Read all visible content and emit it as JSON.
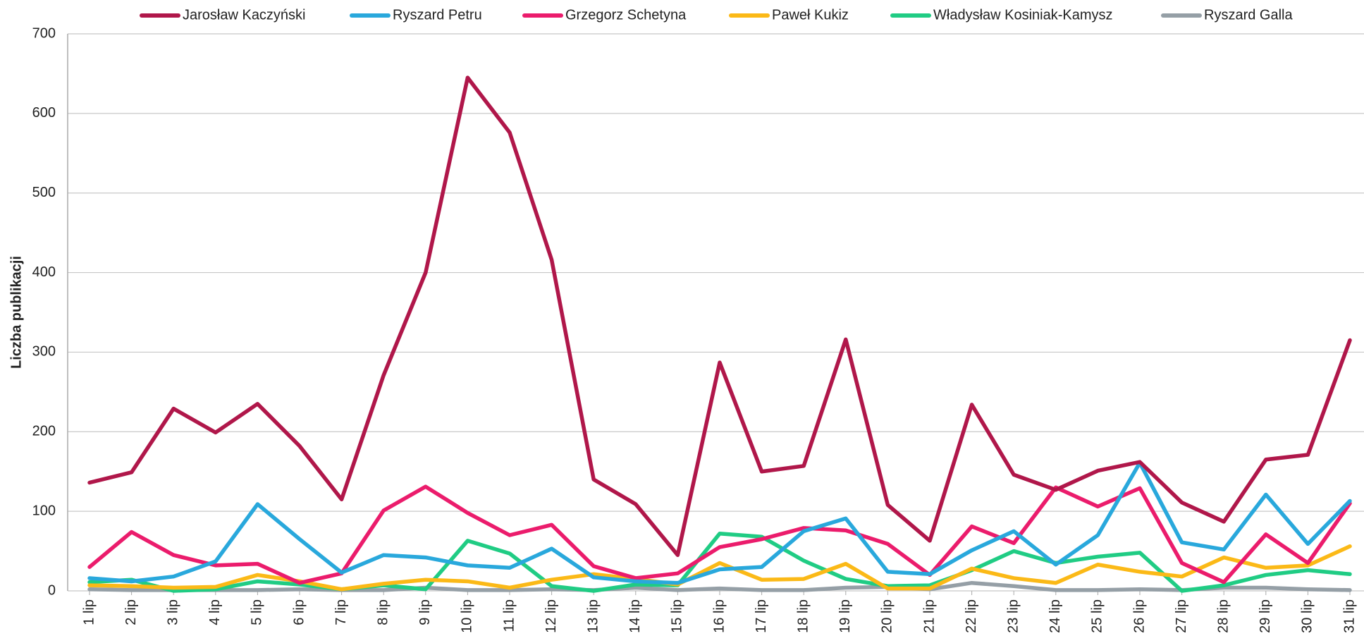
{
  "chart_data": {
    "type": "line",
    "y_label": "Liczba publikacji",
    "categories": [
      "1 lip",
      "2 lip",
      "3 lip",
      "4 lip",
      "5 lip",
      "6 lip",
      "7 lip",
      "8 lip",
      "9 lip",
      "10 lip",
      "11 lip",
      "12 lip",
      "13 lip",
      "14 lip",
      "15 lip",
      "16 lip",
      "17 lip",
      "18 lip",
      "19 lip",
      "20 lip",
      "21 lip",
      "22 lip",
      "23 lip",
      "24 lip",
      "25 lip",
      "26 lip",
      "27 lip",
      "28 lip",
      "29 lip",
      "30 lip",
      "31 lip"
    ],
    "series": [
      {
        "name": "Jarosław Kaczyński",
        "color": "#b0174a",
        "values": [
          136,
          149,
          229,
          199,
          235,
          182,
          115,
          271,
          400,
          645,
          576,
          416,
          140,
          109,
          45,
          287,
          150,
          157,
          316,
          108,
          63,
          234,
          146,
          127,
          151,
          162,
          111,
          87,
          165,
          171,
          315
        ]
      },
      {
        "name": "Ryszard Petru",
        "color": "#29a8dc",
        "values": [
          16,
          12,
          18,
          37,
          109,
          65,
          23,
          45,
          42,
          32,
          29,
          53,
          17,
          12,
          10,
          27,
          30,
          75,
          91,
          24,
          21,
          51,
          75,
          33,
          70,
          161,
          61,
          52,
          121,
          59,
          113
        ]
      },
      {
        "name": "Grzegorz Schetyna",
        "color": "#eb1c6c",
        "values": [
          30,
          74,
          45,
          32,
          34,
          10,
          22,
          101,
          131,
          98,
          70,
          83,
          31,
          16,
          22,
          55,
          65,
          79,
          76,
          59,
          20,
          81,
          60,
          130,
          106,
          129,
          35,
          11,
          71,
          35,
          110
        ]
      },
      {
        "name": "Paweł Kukiz",
        "color": "#fbb917",
        "values": [
          7,
          6,
          4,
          5,
          20,
          12,
          2,
          9,
          14,
          12,
          4,
          14,
          21,
          15,
          8,
          35,
          14,
          15,
          34,
          3,
          3,
          28,
          16,
          10,
          33,
          24,
          18,
          42,
          29,
          32,
          56
        ]
      },
      {
        "name": "Władysław Kosiniak-Kamysz",
        "color": "#20cc84",
        "values": [
          11,
          14,
          0,
          2,
          12,
          8,
          2,
          7,
          2,
          63,
          47,
          6,
          0,
          8,
          7,
          72,
          68,
          38,
          15,
          6,
          7,
          26,
          50,
          35,
          43,
          48,
          0,
          7,
          20,
          26,
          21
        ]
      },
      {
        "name": "Ryszard Galla",
        "color": "#959fa6",
        "values": [
          2,
          1,
          1,
          1,
          1,
          2,
          1,
          1,
          4,
          1,
          1,
          2,
          1,
          4,
          1,
          3,
          1,
          1,
          4,
          5,
          2,
          10,
          6,
          1,
          1,
          2,
          1,
          4,
          4,
          2,
          1
        ]
      }
    ],
    "ylim": [
      0,
      700
    ],
    "yticks": [
      0,
      100,
      200,
      300,
      400,
      500,
      600,
      700
    ],
    "grid": true
  }
}
